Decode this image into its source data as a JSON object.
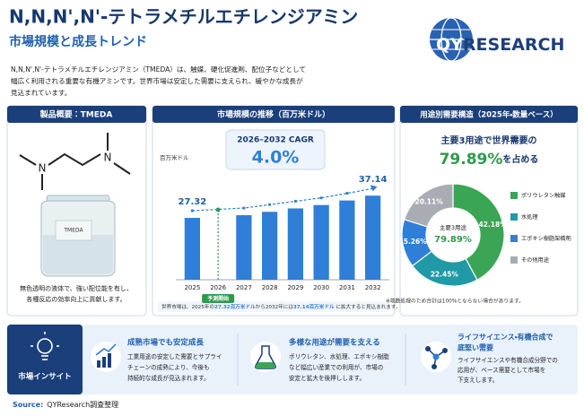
{
  "header": {
    "title": "N,N,N',N'-テトラメチルエチレンジアミン",
    "subtitle": "市場規模と成長トレンド",
    "description": [
      "N,N,N',N'-テトラメチルエチレンジアミン（TMEDA）は、触媒、硬化促進剤、配位子などとして",
      "幅広く利用される重要な有機アミンです。世界市場は安定した需要に支えられ、緩やかな成長が",
      "見込まれています。"
    ]
  },
  "logo": [
    "QY",
    "RESEARCH"
  ],
  "product": {
    "heading": "製品概要：TMEDA",
    "atoms": [
      "N",
      "N"
    ],
    "bottle_label": "TMEDA",
    "caption": [
      "無色透明の液体で、強い配位能を有し、",
      "各種反応の効率向上に貢献します。"
    ]
  },
  "market": {
    "heading": "市場規模の推移（百万米ドル）",
    "cagr_label": "2026–2032 CAGR",
    "cagr": "4.0%",
    "forecast_label": "予測開始",
    "note": [
      "世界市場は、2025年の",
      "27.32百万米ドル",
      "から2032年には",
      "37.14百万米ドル",
      " に拡大すると見込まれます。"
    ]
  },
  "demand": {
    "heading": "用途別需要構造（2025年・数量ベース）",
    "headline": "主要3用途で世界需要の",
    "headline_value": "79.89%",
    "headline_tail": "を占める",
    "center_label": "主要3用途",
    "center_value": "79.89%",
    "note": "※端数処理のため合計は100%とならない場合があります。"
  },
  "chart_data": [
    {
      "type": "bar",
      "y_label": "百万米ドル",
      "categories": [
        "2025",
        "2026",
        "2027",
        "2028",
        "2029",
        "2030",
        "2031",
        "2032"
      ],
      "values": [
        27.32,
        null,
        28.5,
        30.0,
        31.5,
        33.0,
        35.0,
        37.14
      ],
      "value_labels": [
        "27.32",
        null,
        null,
        null,
        null,
        null,
        null,
        "37.14"
      ],
      "color": "#2f7fd8",
      "ylim": [
        0,
        40
      ]
    },
    {
      "type": "pie",
      "categories": [
        "ポリウレタン触媒",
        "水処理",
        "エポキシ樹脂架橋剤",
        "その他用途"
      ],
      "values": [
        42.18,
        22.45,
        15.26,
        20.11
      ],
      "value_labels": [
        "42.18%",
        "22.45%",
        "15.26%",
        "20.11%"
      ],
      "colors": [
        "#3aa655",
        "#1f9aa6",
        "#2f7fd8",
        "#a9adb3"
      ]
    }
  ],
  "insights": {
    "label": "市場インサイト",
    "items": [
      {
        "title": [
          "成熟市場でも安定成長"
        ],
        "text": [
          "工業用途の安定した需要とサプライ",
          "チェーンの成熟により、今後も",
          "持続的な成長が見込まれます。"
        ]
      },
      {
        "title": [
          "多様な用途が需要を支える"
        ],
        "text": [
          "ポリウレタン、水処理、エポキシ樹脂",
          "など幅広い産業での利用が、市場の",
          "安定と拡大を後押しします。"
        ]
      },
      {
        "title": [
          "ライフサイエンス・有機合成で",
          "底堅い需要"
        ],
        "text": [
          "ライフサイエンスや有機合成分野での",
          "応用が、ベース需要として市場を",
          "下支えします。"
        ]
      }
    ]
  },
  "source": {
    "label": "Source:",
    "text": "QYResearch調査整理"
  }
}
